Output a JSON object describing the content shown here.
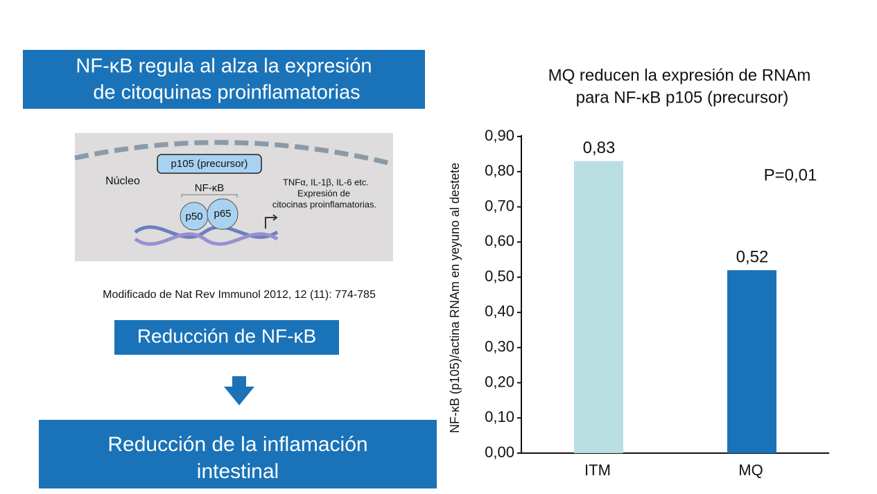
{
  "left_panel": {
    "title": [
      "NF-κB regula al alza la expresión",
      "de citoquinas proinflamatorias"
    ],
    "diagram": {
      "box": "p105 (precursor)",
      "nucleus": "Núcleo",
      "complex": "NF-κB",
      "p50": "p50",
      "p65": "p65",
      "genes": [
        "TNFα, IL-1β, IL-6 etc.",
        "Expresión de",
        "citocinas proinflamatorias."
      ]
    },
    "source": "Modificado de Nat Rev Immunol 2012, 12 (11): 774-785",
    "step1": "Reducción de NF-κB",
    "step2": [
      "Reducción de la inflamación",
      "intestinal"
    ]
  },
  "chart_data": {
    "type": "bar",
    "title": [
      "MQ reducen la expresión de RNAm",
      "para NF-κB p105 (precursor)"
    ],
    "y_label": "NF-κB (p105)/actina RNAm en yeyuno al destete",
    "categories": [
      "ITM",
      "MQ"
    ],
    "values": [
      0.83,
      0.52
    ],
    "value_labels": [
      "0,83",
      "0,52"
    ],
    "colors": [
      "#b9dfe3",
      "#1a73b8"
    ],
    "annotation": "P=0,01",
    "ylim": [
      0,
      0.9
    ],
    "yticks": [
      {
        "value": 0,
        "label": "0,00"
      },
      {
        "value": 0.1,
        "label": "0,10"
      },
      {
        "value": 0.2,
        "label": "0,20"
      },
      {
        "value": 0.3,
        "label": "0,30"
      },
      {
        "value": 0.4,
        "label": "0,40"
      },
      {
        "value": 0.5,
        "label": "0,50"
      },
      {
        "value": 0.6,
        "label": "0,60"
      },
      {
        "value": 0.7,
        "label": "0,70"
      },
      {
        "value": 0.8,
        "label": "0,80"
      },
      {
        "value": 0.9,
        "label": "0,90"
      }
    ]
  }
}
